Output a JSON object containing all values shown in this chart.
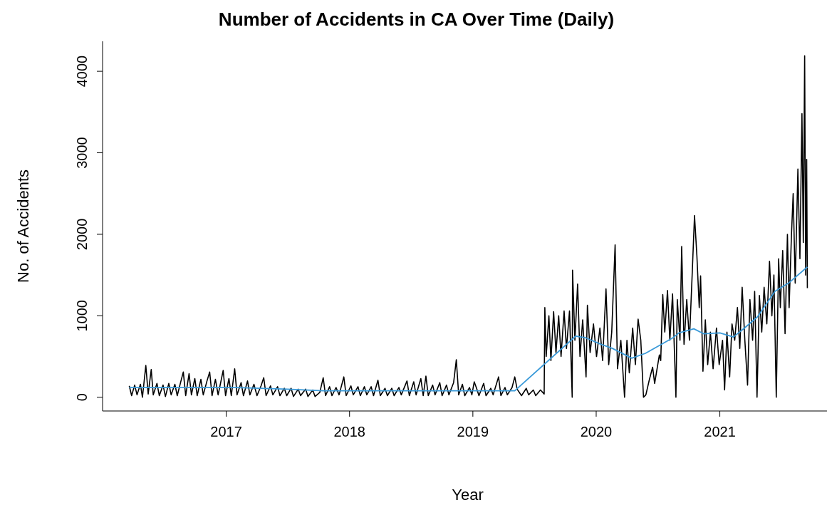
{
  "chart_data": {
    "type": "line",
    "title": "Number of Accidents in CA Over Time (Daily)",
    "xlabel": "Year",
    "ylabel": "No. of Accidents",
    "xlim": [
      "2016-01-01",
      "2021-12-01"
    ],
    "ylim": [
      -168,
      4368
    ],
    "xticks": [
      "2017",
      "2018",
      "2019",
      "2020",
      "2021"
    ],
    "yticks": [
      0,
      1000,
      2000,
      3000,
      4000
    ],
    "series": [
      {
        "color": "#000000",
        "x": [
          "2016-03-20",
          "2016-03-27",
          "2016-04-05",
          "2016-04-12",
          "2016-04-22",
          "2016-04-28",
          "2016-05-08",
          "2016-05-15",
          "2016-05-24",
          "2016-05-30",
          "2016-06-10",
          "2016-06-17",
          "2016-06-28",
          "2016-07-05",
          "2016-07-15",
          "2016-07-22",
          "2016-08-02",
          "2016-08-09",
          "2016-08-20",
          "2016-08-27",
          "2016-09-03",
          "2016-09-13",
          "2016-09-20",
          "2016-09-30",
          "2016-10-07",
          "2016-10-18",
          "2016-10-25",
          "2016-11-05",
          "2016-11-13",
          "2016-11-20",
          "2016-11-30",
          "2016-12-08",
          "2016-12-23",
          "2016-12-30",
          "2017-01-09",
          "2017-01-16",
          "2017-01-26",
          "2017-02-02",
          "2017-02-14",
          "2017-02-21",
          "2017-03-05",
          "2017-03-12",
          "2017-03-24",
          "2017-04-02",
          "2017-04-14",
          "2017-04-22",
          "2017-04-29",
          "2017-05-12",
          "2017-05-19",
          "2017-06-02",
          "2017-06-09",
          "2017-06-22",
          "2017-06-29",
          "2017-07-12",
          "2017-07-19",
          "2017-08-02",
          "2017-08-09",
          "2017-08-24",
          "2017-08-31",
          "2017-09-14",
          "2017-09-21",
          "2017-10-05",
          "2017-10-15",
          "2017-10-22",
          "2017-11-03",
          "2017-11-10",
          "2017-11-22",
          "2017-12-01",
          "2017-12-15",
          "2017-12-22",
          "2018-01-05",
          "2018-01-12",
          "2018-01-26",
          "2018-02-02",
          "2018-02-14",
          "2018-02-21",
          "2018-03-06",
          "2018-03-13",
          "2018-03-26",
          "2018-04-02",
          "2018-04-16",
          "2018-04-23",
          "2018-05-06",
          "2018-05-13",
          "2018-05-27",
          "2018-06-03",
          "2018-06-20",
          "2018-06-27",
          "2018-07-10",
          "2018-07-17",
          "2018-07-31",
          "2018-08-07",
          "2018-08-15",
          "2018-08-22",
          "2018-09-04",
          "2018-09-11",
          "2018-09-25",
          "2018-10-02",
          "2018-10-15",
          "2018-10-22",
          "2018-11-05",
          "2018-11-13",
          "2018-11-20",
          "2018-12-01",
          "2018-12-08",
          "2018-12-22",
          "2018-12-29",
          "2019-01-05",
          "2019-01-12",
          "2019-01-19",
          "2019-02-02",
          "2019-02-09",
          "2019-02-23",
          "2019-03-02",
          "2019-03-18",
          "2019-03-25",
          "2019-04-06",
          "2019-04-13",
          "2019-04-27",
          "2019-05-05",
          "2019-05-12",
          "2019-05-25",
          "2019-06-08",
          "2019-06-15",
          "2019-06-29",
          "2019-07-06",
          "2019-07-20",
          "2019-07-31",
          "2019-08-02",
          "2019-08-06",
          "2019-08-14",
          "2019-08-20",
          "2019-08-28",
          "2019-09-04",
          "2019-09-12",
          "2019-09-19",
          "2019-09-28",
          "2019-10-05",
          "2019-10-14",
          "2019-10-22",
          "2019-10-23",
          "2019-10-30",
          "2019-11-07",
          "2019-11-14",
          "2019-11-22",
          "2019-12-02",
          "2019-12-06",
          "2019-12-14",
          "2019-12-24",
          "2020-01-02",
          "2020-01-12",
          "2020-01-20",
          "2020-01-30",
          "2020-02-07",
          "2020-02-16",
          "2020-02-26",
          "2020-03-04",
          "2020-03-14",
          "2020-03-25",
          "2020-04-01",
          "2020-04-08",
          "2020-04-18",
          "2020-04-26",
          "2020-05-04",
          "2020-05-12",
          "2020-05-20",
          "2020-05-27",
          "2020-06-06",
          "2020-06-16",
          "2020-06-22",
          "2020-07-06",
          "2020-07-10",
          "2020-07-16",
          "2020-07-22",
          "2020-07-30",
          "2020-08-06",
          "2020-08-14",
          "2020-08-24",
          "2020-08-28",
          "2020-09-05",
          "2020-09-10",
          "2020-09-17",
          "2020-09-25",
          "2020-10-03",
          "2020-10-11",
          "2020-10-18",
          "2020-10-25",
          "2020-11-01",
          "2020-11-05",
          "2020-11-12",
          "2020-11-19",
          "2020-11-26",
          "2020-12-04",
          "2020-12-12",
          "2020-12-22",
          "2020-12-30",
          "2021-01-09",
          "2021-01-15",
          "2021-01-22",
          "2021-01-30",
          "2021-02-06",
          "2021-02-14",
          "2021-02-22",
          "2021-03-01",
          "2021-03-08",
          "2021-03-16",
          "2021-03-24",
          "2021-03-31",
          "2021-04-08",
          "2021-04-14",
          "2021-04-21",
          "2021-04-28",
          "2021-05-05",
          "2021-05-12",
          "2021-05-20",
          "2021-05-28",
          "2021-06-04",
          "2021-06-10",
          "2021-06-17",
          "2021-06-24",
          "2021-06-29",
          "2021-07-06",
          "2021-07-13",
          "2021-07-20",
          "2021-07-25",
          "2021-08-01",
          "2021-08-06",
          "2021-08-12",
          "2021-08-20",
          "2021-08-26",
          "2021-09-01",
          "2021-09-05",
          "2021-09-09",
          "2021-09-12",
          "2021-09-15",
          "2021-09-17"
        ],
        "values": [
          140,
          20,
          150,
          30,
          160,
          0,
          390,
          40,
          340,
          30,
          170,
          20,
          150,
          10,
          170,
          30,
          160,
          20,
          200,
          310,
          20,
          290,
          30,
          230,
          20,
          220,
          30,
          200,
          310,
          20,
          220,
          30,
          330,
          20,
          230,
          20,
          350,
          30,
          180,
          20,
          200,
          30,
          160,
          20,
          140,
          240,
          20,
          140,
          30,
          130,
          20,
          110,
          20,
          110,
          10,
          100,
          20,
          100,
          10,
          90,
          10,
          60,
          240,
          20,
          130,
          20,
          120,
          30,
          250,
          20,
          140,
          30,
          130,
          20,
          130,
          30,
          130,
          20,
          210,
          20,
          110,
          20,
          110,
          20,
          120,
          30,
          200,
          20,
          190,
          30,
          230,
          20,
          260,
          20,
          150,
          30,
          180,
          20,
          150,
          30,
          180,
          460,
          30,
          160,
          20,
          120,
          30,
          190,
          110,
          20,
          170,
          20,
          110,
          30,
          250,
          20,
          120,
          30,
          120,
          250,
          100,
          20,
          110,
          30,
          90,
          20,
          90,
          40,
          1100,
          500,
          1000,
          450,
          1050,
          550,
          1000,
          500,
          1060,
          600,
          1060,
          0,
          1560,
          700,
          1390,
          500,
          950,
          250,
          1130,
          550,
          900,
          500,
          850,
          450,
          1330,
          400,
          800,
          1870,
          350,
          700,
          0,
          700,
          300,
          850,
          400,
          960,
          700,
          0,
          30,
          210,
          370,
          170,
          520,
          450,
          1260,
          800,
          1310,
          700,
          1270,
          0,
          1200,
          700,
          1850,
          650,
          1200,
          700,
          1500,
          2230,
          1740,
          1100,
          1490,
          320,
          950,
          400,
          800,
          350,
          850,
          400,
          700,
          90,
          800,
          250,
          900,
          700,
          1100,
          600,
          1350,
          700,
          150,
          1200,
          700,
          1300,
          0,
          1250,
          800,
          1350,
          900,
          1670,
          1000,
          1500,
          0,
          1700,
          1100,
          1800,
          780,
          2000,
          1100,
          2000,
          2500,
          1400,
          2800,
          1700,
          3480,
          1900,
          4190,
          1500,
          2920,
          1340
        ]
      },
      {
        "color": "#3a9ad9",
        "x": [
          "2016-03-20",
          "2016-09-01",
          "2017-02-01",
          "2017-07-01",
          "2017-10-15",
          "2018-03-01",
          "2018-09-01",
          "2019-02-01",
          "2019-05-05",
          "2019-11-01",
          "2019-12-01",
          "2020-01-15",
          "2020-02-18",
          "2020-04-15",
          "2020-05-26",
          "2020-07-08",
          "2020-08-15",
          "2020-09-02",
          "2020-10-16",
          "2020-11-14",
          "2021-01-01",
          "2021-02-10",
          "2021-03-15",
          "2021-04-23",
          "2021-06-13",
          "2021-07-23",
          "2021-09-17"
        ],
        "values": [
          120,
          120,
          120,
          100,
          80,
          80,
          80,
          80,
          80,
          750,
          730,
          650,
          600,
          480,
          540,
          640,
          730,
          790,
          840,
          780,
          790,
          740,
          850,
          990,
          1300,
          1400,
          1600
        ]
      }
    ]
  }
}
